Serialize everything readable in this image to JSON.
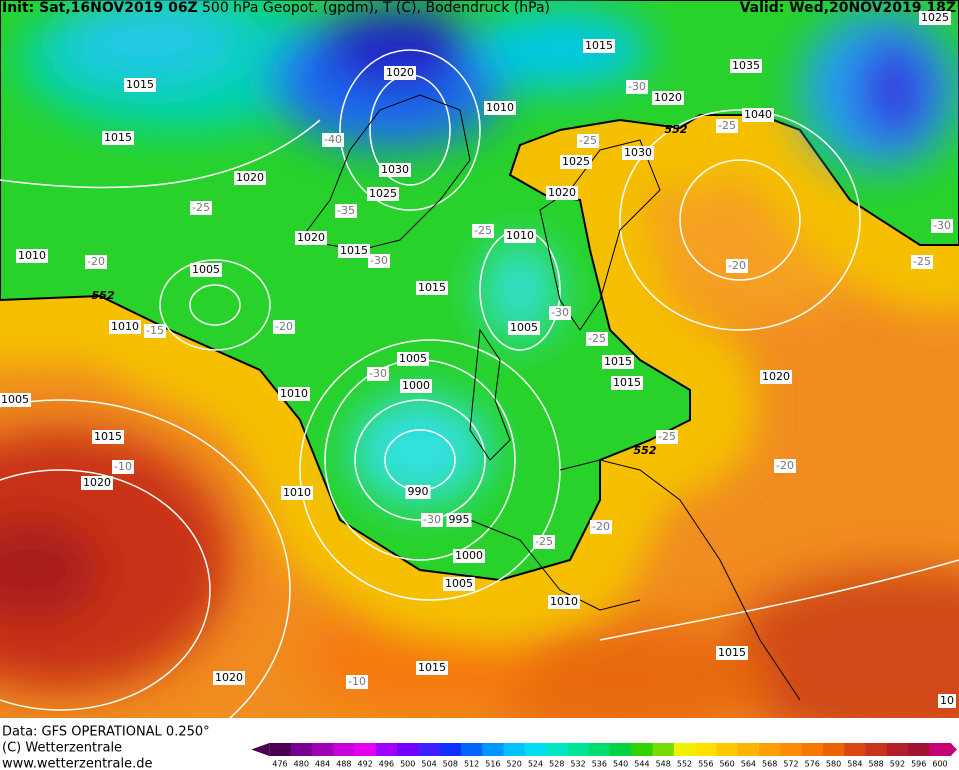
{
  "header": {
    "init": "Init: Sat,16NOV2019 06Z",
    "title": "500 hPa Geopot. (gpdm), T (C), Bodendruck (hPa)",
    "valid": "Valid: Wed,20NOV2019 18Z"
  },
  "map": {
    "pressure_labels": [
      "1015",
      "1015",
      "1020",
      "1010",
      "1005",
      "1010",
      "1005",
      "1015",
      "1020",
      "1010",
      "1010",
      "1020",
      "1030",
      "1025",
      "1020",
      "1015",
      "1015",
      "1005",
      "1000",
      "990",
      "995",
      "1000",
      "1005",
      "1010",
      "1015",
      "1020",
      "1010",
      "1015",
      "1020",
      "1035",
      "1040",
      "1030",
      "1025",
      "1020",
      "1010",
      "1005",
      "1015",
      "1015",
      "1020",
      "1015",
      "1025",
      "10"
    ],
    "temperature_labels": [
      "-40",
      "-35",
      "-30",
      "-25",
      "-20",
      "-15",
      "-20",
      "-30",
      "-10",
      "-30",
      "-25",
      "-20",
      "-25",
      "-30",
      "-25",
      "-25",
      "-30",
      "-25",
      "-20",
      "-30",
      "-25",
      "-25",
      "-20",
      "-10"
    ],
    "contour_labels": [
      "552",
      "552",
      "552"
    ]
  },
  "footer": {
    "source": "Data: GFS OPERATIONAL 0.250°",
    "copyright": "(C) Wetterzentrale",
    "url": "www.wetterzentrale.de"
  },
  "colorbar": {
    "ticks": [
      476,
      480,
      484,
      488,
      492,
      496,
      500,
      504,
      508,
      512,
      516,
      520,
      524,
      528,
      532,
      536,
      540,
      544,
      548,
      552,
      556,
      560,
      564,
      568,
      572,
      576,
      580,
      584,
      588,
      592,
      596,
      600
    ],
    "colors": [
      "#4b0050",
      "#780090",
      "#a000b4",
      "#c800dc",
      "#e600f0",
      "#a000ff",
      "#7000ff",
      "#4020ff",
      "#1030ff",
      "#0064ff",
      "#0096ff",
      "#00c0ff",
      "#00dcf0",
      "#00e6c0",
      "#00e696",
      "#00dc6e",
      "#00d246",
      "#30d200",
      "#78dc00",
      "#f0f000",
      "#ffe100",
      "#ffc800",
      "#ffb400",
      "#ffa000",
      "#ff8c00",
      "#f57800",
      "#eb6400",
      "#dc4614",
      "#c8321e",
      "#b41e28",
      "#a01432",
      "#c80078"
    ]
  }
}
